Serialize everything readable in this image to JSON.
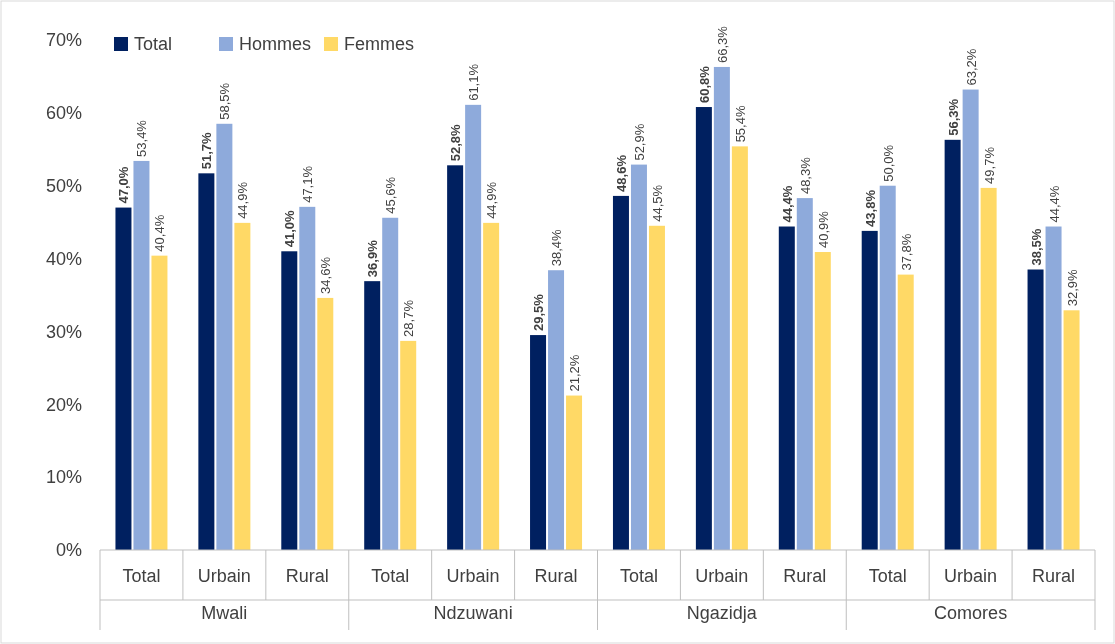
{
  "chart_data": {
    "type": "bar",
    "categories": [
      "Total",
      "Urbain",
      "Rural",
      "Total",
      "Urbain",
      "Rural",
      "Total",
      "Urbain",
      "Rural",
      "Total",
      "Urbain",
      "Rural"
    ],
    "series": [
      {
        "name": "Total",
        "color": "#002060",
        "values": [
          47.0,
          51.7,
          41.0,
          36.9,
          52.8,
          29.5,
          48.6,
          60.8,
          44.4,
          43.8,
          56.3,
          38.5
        ],
        "value_labels": [
          "47,0%",
          "51,7%",
          "41,0%",
          "36,9%",
          "52,8%",
          "29,5%",
          "48,6%",
          "60,8%",
          "44,4%",
          "43,8%",
          "56,3%",
          "38,5%"
        ]
      },
      {
        "name": "Hommes",
        "color": "#8eaadb",
        "values": [
          53.4,
          58.5,
          47.1,
          45.6,
          61.1,
          38.4,
          52.9,
          66.3,
          48.3,
          50.0,
          63.2,
          44.4
        ],
        "value_labels": [
          "53,4%",
          "58,5%",
          "47,1%",
          "45,6%",
          "61,1%",
          "38,4%",
          "52,9%",
          "66,3%",
          "48,3%",
          "50,0%",
          "63,2%",
          "44,4%"
        ]
      },
      {
        "name": "Femmes",
        "color": "#ffd966",
        "values": [
          40.4,
          44.9,
          34.6,
          28.7,
          44.9,
          21.2,
          44.5,
          55.4,
          40.9,
          37.8,
          49.7,
          32.9
        ],
        "value_labels": [
          "40,4%",
          "44,9%",
          "34,6%",
          "28,7%",
          "44,9%",
          "21,2%",
          "44,5%",
          "55,4%",
          "40,9%",
          "37,8%",
          "49,7%",
          "32,9%"
        ]
      }
    ],
    "annotations": [
      "Mwali",
      "Ndzuwani",
      "Ngazidja",
      "Comores"
    ],
    "ylim": [
      0,
      70
    ],
    "yticks": [
      {
        "value": 0,
        "label": "0%"
      },
      {
        "value": 10,
        "label": "10%"
      },
      {
        "value": 20,
        "label": "20%"
      },
      {
        "value": 30,
        "label": "30%"
      },
      {
        "value": 40,
        "label": "40%"
      },
      {
        "value": 50,
        "label": "50%"
      },
      {
        "value": 60,
        "label": "60%"
      },
      {
        "value": 70,
        "label": "70%"
      }
    ],
    "grid": false,
    "legend": "top left"
  }
}
